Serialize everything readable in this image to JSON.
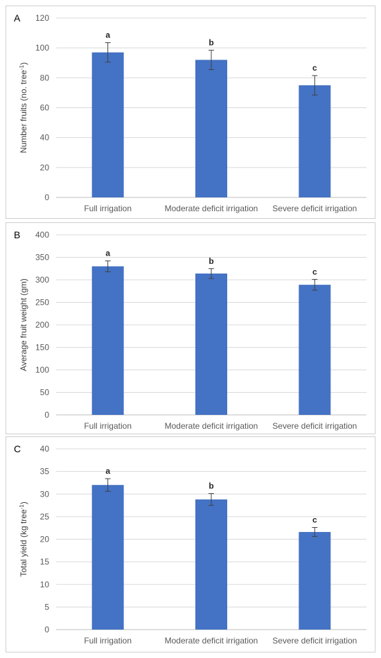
{
  "colors": {
    "bar": "#4472C4",
    "grid": "#d9d9d9",
    "axis": "#bfbfbf",
    "error": "#404040"
  },
  "chart_data": [
    {
      "panel": "A",
      "type": "bar",
      "categories": [
        "Full irrigation",
        "Moderate deficit irrigation",
        "Severe deficit irrigation"
      ],
      "values": [
        97,
        92,
        75
      ],
      "errors": [
        6.5,
        6.5,
        6.5
      ],
      "significance": [
        "a",
        "b",
        "c"
      ],
      "ylabel": "Number fruits (no. tree",
      "ylabel_sup": "-1",
      "ylabel_close": ")",
      "ylim": [
        0,
        120
      ],
      "yticks": [
        0,
        20,
        40,
        60,
        80,
        100,
        120
      ],
      "grid": true
    },
    {
      "panel": "B",
      "type": "bar",
      "categories": [
        "Full irrigation",
        "Moderate deficit irrigation",
        "Severe deficit irrigation"
      ],
      "values": [
        330,
        314,
        289
      ],
      "errors": [
        12,
        11,
        12
      ],
      "significance": [
        "a",
        "b",
        "c"
      ],
      "ylabel": "Average fruit weight (gm)",
      "ylabel_sup": "",
      "ylabel_close": "",
      "ylim": [
        0,
        400
      ],
      "yticks": [
        0,
        50,
        100,
        150,
        200,
        250,
        300,
        350,
        400
      ],
      "grid": true
    },
    {
      "panel": "C",
      "type": "bar",
      "categories": [
        "Full irrigation",
        "Moderate deficit irrigation",
        "Severe deficit irrigation"
      ],
      "values": [
        32,
        28.8,
        21.6
      ],
      "errors": [
        1.4,
        1.3,
        1.0
      ],
      "significance": [
        "a",
        "b",
        "c"
      ],
      "ylabel": "Total yield (kg tree",
      "ylabel_sup": "-1",
      "ylabel_close": ")",
      "ylim": [
        0,
        40
      ],
      "yticks": [
        0,
        5,
        10,
        15,
        20,
        25,
        30,
        35,
        40
      ],
      "grid": true
    }
  ]
}
